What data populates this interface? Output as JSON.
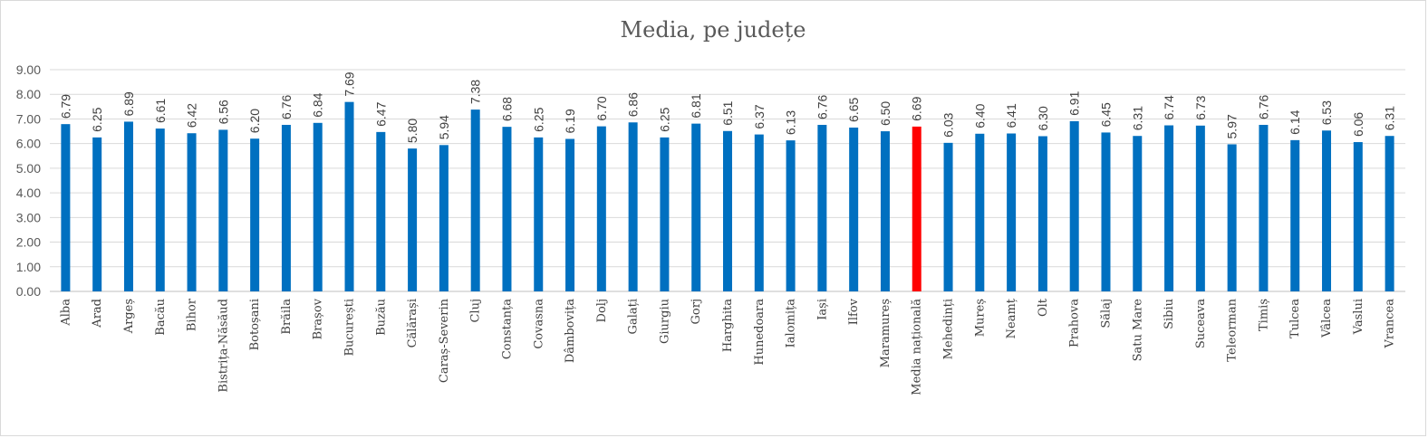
{
  "chart_data": {
    "type": "bar",
    "title": "Media, pe județe",
    "xlabel": "",
    "ylabel": "",
    "ylim": [
      0,
      9
    ],
    "yticks": [
      "0.00",
      "1.00",
      "2.00",
      "3.00",
      "4.00",
      "5.00",
      "6.00",
      "7.00",
      "8.00",
      "9.00"
    ],
    "grid": true,
    "legend": "none",
    "colors": {
      "bar": "#0070c0",
      "highlight": "#ff0000",
      "grid": "#d9d9d9"
    },
    "highlight_category": "Media națională",
    "categories": [
      "Alba",
      "Arad",
      "Argeș",
      "Bacău",
      "Bihor",
      "Bistrița-Năsăud",
      "Botoșani",
      "Brăila",
      "Brașov",
      "București",
      "Buzău",
      "Călărași",
      "Caraș-Severin",
      "Cluj",
      "Constanța",
      "Covasna",
      "Dâmbovița",
      "Dolj",
      "Galați",
      "Giurgiu",
      "Gorj",
      "Harghita",
      "Hunedoara",
      "Ialomița",
      "Iași",
      "Ilfov",
      "Maramureș",
      "Media națională",
      "Mehedinți",
      "Mureș",
      "Neamț",
      "Olt",
      "Prahova",
      "Sălaj",
      "Satu Mare",
      "Sibiu",
      "Suceava",
      "Teleorman",
      "Timiș",
      "Tulcea",
      "Vâlcea",
      "Vaslui",
      "Vrancea"
    ],
    "values": [
      6.79,
      6.25,
      6.89,
      6.61,
      6.42,
      6.56,
      6.2,
      6.76,
      6.84,
      7.69,
      6.47,
      5.8,
      5.94,
      7.38,
      6.68,
      6.25,
      6.19,
      6.7,
      6.86,
      6.25,
      6.81,
      6.51,
      6.37,
      6.13,
      6.76,
      6.65,
      6.5,
      6.69,
      6.03,
      6.4,
      6.41,
      6.3,
      6.91,
      6.45,
      6.31,
      6.74,
      6.73,
      5.97,
      6.76,
      6.14,
      6.53,
      6.06,
      6.31
    ]
  }
}
